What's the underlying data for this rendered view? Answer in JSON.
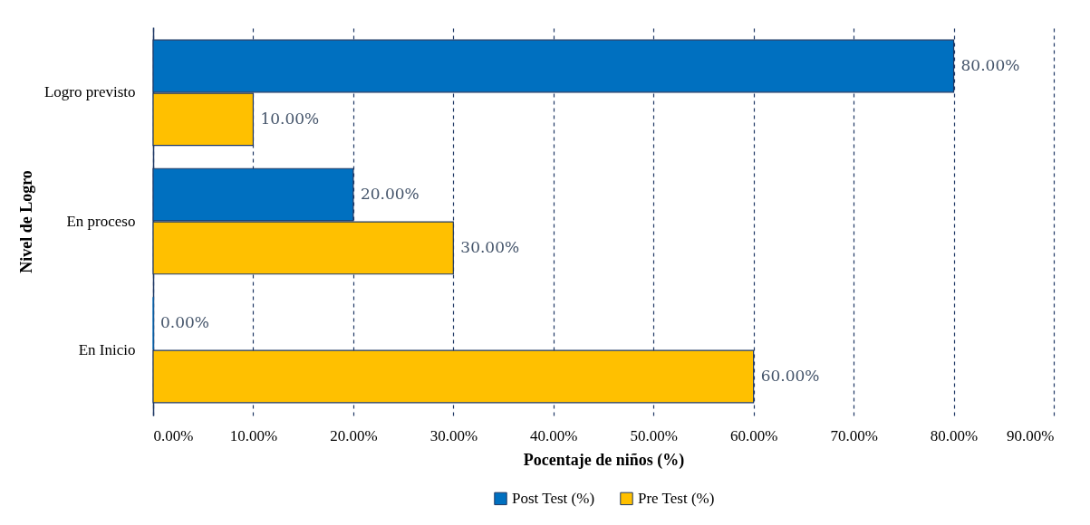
{
  "chart_data": {
    "type": "bar",
    "orientation": "horizontal",
    "xlabel": "Pocentaje de niños (%)",
    "ylabel": "Nivel de Logro",
    "categories": [
      "Logro previsto",
      "En proceso",
      "En Inicio"
    ],
    "series": [
      {
        "name": "Post Test (%)",
        "color": "#0070c0",
        "values": [
          80,
          20,
          0
        ],
        "value_labels": [
          "80.00%",
          "20.00%",
          "0.00%"
        ]
      },
      {
        "name": "Pre Test (%)",
        "color": "#ffc000",
        "values": [
          10,
          30,
          60
        ],
        "value_labels": [
          "10.00%",
          "30.00%",
          "60.00%"
        ]
      }
    ],
    "xlim": [
      0,
      90
    ],
    "xticks": [
      {
        "value": 0,
        "label": "0.00%"
      },
      {
        "value": 10,
        "label": "10.00%"
      },
      {
        "value": 20,
        "label": "20.00%"
      },
      {
        "value": 30,
        "label": "30.00%"
      },
      {
        "value": 40,
        "label": "40.00%"
      },
      {
        "value": 50,
        "label": "50.00%"
      },
      {
        "value": 60,
        "label": "60.00%"
      },
      {
        "value": 70,
        "label": "70.00%"
      },
      {
        "value": 80,
        "label": "80.00%"
      },
      {
        "value": 90,
        "label": "90.00%"
      }
    ],
    "grid": "x",
    "legend": "bottom"
  }
}
